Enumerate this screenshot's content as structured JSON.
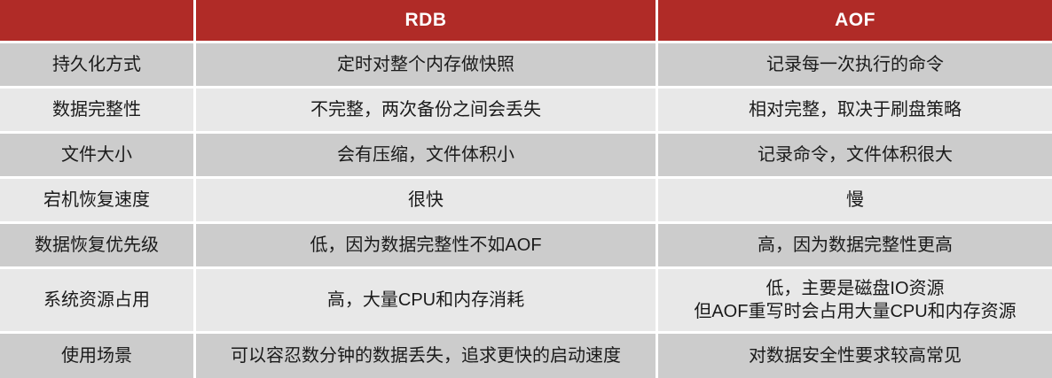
{
  "colors": {
    "header_bg": "#B02B27",
    "row_dark": "#CCCCCC",
    "row_light": "#E8E8E8",
    "header_text": "#FFFFFF",
    "body_text": "#1A1A1A"
  },
  "table": {
    "header": {
      "corner": "",
      "rdb": "RDB",
      "aof": "AOF"
    },
    "rows": [
      {
        "label": "持久化方式",
        "rdb": "定时对整个内存做快照",
        "aof": "记录每一次执行的命令"
      },
      {
        "label": "数据完整性",
        "rdb": "不完整，两次备份之间会丢失",
        "aof": "相对完整，取决于刷盘策略"
      },
      {
        "label": "文件大小",
        "rdb": "会有压缩，文件体积小",
        "aof": "记录命令，文件体积很大"
      },
      {
        "label": "宕机恢复速度",
        "rdb": "很快",
        "aof": "慢"
      },
      {
        "label": "数据恢复优先级",
        "rdb": "低，因为数据完整性不如AOF",
        "aof": "高，因为数据完整性更高"
      },
      {
        "label": "系统资源占用",
        "rdb": "高，大量CPU和内存消耗",
        "aof": "低，主要是磁盘IO资源\n但AOF重写时会占用大量CPU和内存资源"
      },
      {
        "label": "使用场景",
        "rdb": "可以容忍数分钟的数据丢失，追求更快的启动速度",
        "aof": "对数据安全性要求较高常见"
      }
    ]
  }
}
